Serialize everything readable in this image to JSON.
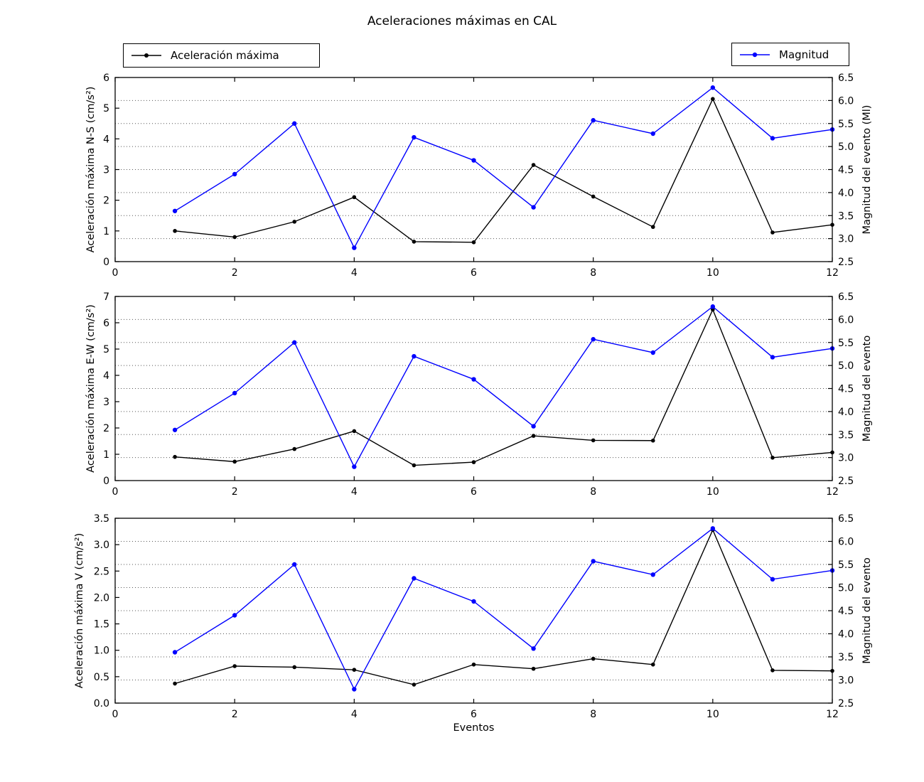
{
  "title": "Aceleraciones máximas en CAL",
  "xlabel": "Eventos",
  "legends": {
    "accel": "Aceleración máxima",
    "magnitud": "Magnitud"
  },
  "colors": {
    "accel": "#000000",
    "magnitud": "#0000ff",
    "grid": "#555555"
  },
  "chart_data": {
    "type": "line",
    "title": "Aceleraciones máximas en CAL",
    "xlabel": "Eventos",
    "x": [
      1,
      2,
      3,
      4,
      5,
      6,
      7,
      8,
      9,
      10,
      11,
      12
    ],
    "xlim": [
      0,
      12
    ],
    "xticks": [
      "0",
      "2",
      "4",
      "6",
      "8",
      "10",
      "12"
    ],
    "grid": "horizontal dotted lines at right-axis ticks 3.0 to 6.0",
    "legend_position": "two boxes above first subplot: upper-left and upper-right",
    "subplots": [
      {
        "id": "ns",
        "ylabel_left": "Aceleración máxima N-S (cm/s²)",
        "ylabel_right": "Magnitud del evento (Ml)",
        "ylim_left": [
          0,
          6
        ],
        "ylim_right": [
          2.5,
          6.5
        ],
        "yticks_left": [
          "0",
          "1",
          "2",
          "3",
          "4",
          "5",
          "6"
        ],
        "yticks_right": [
          "2.5",
          "3.0",
          "3.5",
          "4.0",
          "4.5",
          "5.0",
          "5.5",
          "6.0",
          "6.5"
        ],
        "series": [
          {
            "name": "Aceleración máxima",
            "axis": "left",
            "color": "#000000",
            "values": [
              1.0,
              0.8,
              1.3,
              2.1,
              0.65,
              0.63,
              3.15,
              2.12,
              1.13,
              5.3,
              0.95,
              1.2
            ]
          },
          {
            "name": "Magnitud",
            "axis": "right",
            "color": "#0000ff",
            "values": [
              3.6,
              4.4,
              5.5,
              2.8,
              5.2,
              4.7,
              3.68,
              5.57,
              5.28,
              6.28,
              5.18,
              5.37
            ]
          }
        ]
      },
      {
        "id": "ew",
        "ylabel_left": "Aceleración máxima E-W (cm/s²)",
        "ylabel_right": "Magnitud del evento",
        "ylim_left": [
          0,
          7
        ],
        "ylim_right": [
          2.5,
          6.5
        ],
        "yticks_left": [
          "0",
          "1",
          "2",
          "3",
          "4",
          "5",
          "6",
          "7"
        ],
        "yticks_right": [
          "2.5",
          "3.0",
          "3.5",
          "4.0",
          "4.5",
          "5.0",
          "5.5",
          "6.0",
          "6.5"
        ],
        "series": [
          {
            "name": "Aceleración máxima",
            "axis": "left",
            "color": "#000000",
            "values": [
              0.9,
              0.72,
              1.2,
              1.88,
              0.58,
              0.7,
              1.7,
              1.53,
              1.52,
              6.5,
              0.87,
              1.07
            ]
          },
          {
            "name": "Magnitud",
            "axis": "right",
            "color": "#0000ff",
            "values": [
              3.6,
              4.4,
              5.5,
              2.8,
              5.2,
              4.7,
              3.68,
              5.57,
              5.28,
              6.28,
              5.18,
              5.37
            ]
          }
        ]
      },
      {
        "id": "v",
        "ylabel_left": "Aceleración máxima V (cm/s²)",
        "ylabel_right": "Magnitud del evento",
        "ylim_left": [
          0,
          3.5
        ],
        "ylim_right": [
          2.5,
          6.5
        ],
        "yticks_left": [
          "0.0",
          "0.5",
          "1.0",
          "1.5",
          "2.0",
          "2.5",
          "3.0",
          "3.5"
        ],
        "yticks_right": [
          "2.5",
          "3.0",
          "3.5",
          "4.0",
          "4.5",
          "5.0",
          "5.5",
          "6.0",
          "6.5"
        ],
        "series": [
          {
            "name": "Aceleración máxima",
            "axis": "left",
            "color": "#000000",
            "values": [
              0.37,
              0.7,
              0.68,
              0.63,
              0.35,
              0.73,
              0.65,
              0.84,
              0.73,
              3.28,
              0.62,
              0.61
            ]
          },
          {
            "name": "Magnitud",
            "axis": "right",
            "color": "#0000ff",
            "values": [
              3.6,
              4.4,
              5.5,
              2.8,
              5.2,
              4.7,
              3.68,
              5.57,
              5.28,
              6.28,
              5.18,
              5.37
            ]
          }
        ]
      }
    ]
  }
}
